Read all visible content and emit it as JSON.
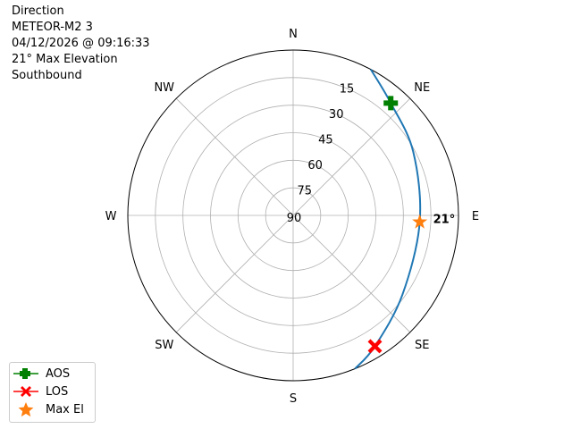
{
  "title_lines": [
    "Direction",
    "METEOR-M2 3",
    "04/12/2026 @ 09:16:33",
    "21° Max Elevation",
    "Southbound"
  ],
  "chart_data": {
    "type": "polar-line",
    "theta_direction": "clockwise",
    "theta_zero": "N",
    "direction_labels": [
      "N",
      "NE",
      "E",
      "SE",
      "S",
      "SW",
      "W",
      "NW"
    ],
    "radial_tick_labels": [
      "15",
      "30",
      "45",
      "60",
      "75",
      "90"
    ],
    "radial_ticks": [
      15,
      30,
      45,
      60,
      75,
      90
    ],
    "rlim_elevation": [
      0,
      90
    ],
    "grid": true,
    "track": {
      "color": "#1f77b4",
      "points": [
        {
          "az": 28,
          "el": 0
        },
        {
          "az": 41,
          "el": 9
        },
        {
          "az": 62,
          "el": 16
        },
        {
          "az": 93,
          "el": 21
        },
        {
          "az": 126,
          "el": 16.5
        },
        {
          "az": 148,
          "el": 6
        },
        {
          "az": 158,
          "el": 0
        }
      ]
    },
    "markers": {
      "aos": {
        "az": 41,
        "el": 9,
        "color": "#008000",
        "label": "AOS"
      },
      "los": {
        "az": 148,
        "el": 6,
        "color": "#ff0000",
        "label": "LOS"
      },
      "max_el": {
        "az": 93,
        "el": 21,
        "color": "#ff7f0e",
        "label": "Max El"
      }
    },
    "annotation": "21°",
    "legend_position": "lower-left"
  }
}
